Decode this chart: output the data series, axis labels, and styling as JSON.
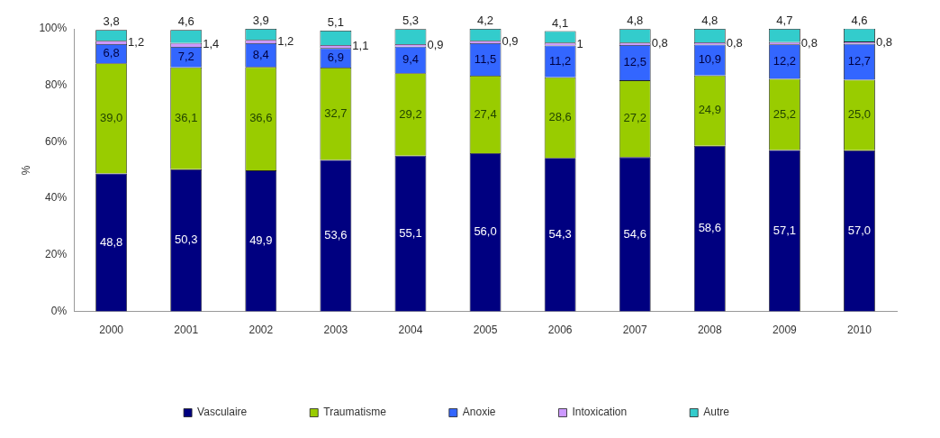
{
  "chart_data": {
    "type": "bar",
    "stacked": true,
    "ylabel": "%",
    "legend": "bottom",
    "grid": false,
    "categories": [
      "2000",
      "2001",
      "2002",
      "2003",
      "2004",
      "2005",
      "2006",
      "2007",
      "2008",
      "2009",
      "2010"
    ],
    "ylim": [
      0,
      100
    ],
    "yticks": [
      {
        "value": 0,
        "label": "0%"
      },
      {
        "value": 20,
        "label": "20%"
      },
      {
        "value": 40,
        "label": "40%"
      },
      {
        "value": 60,
        "label": "60%"
      },
      {
        "value": 80,
        "label": "80%"
      },
      {
        "value": 100,
        "label": "100%"
      }
    ],
    "series": [
      {
        "name": "Vasculaire",
        "color": "#000080",
        "values": [
          48.8,
          50.3,
          49.9,
          53.6,
          55.1,
          56.0,
          54.3,
          54.6,
          58.6,
          57.1,
          57.0
        ],
        "value_labels": [
          "48,8",
          "50,3",
          "49,9",
          "53,6",
          "55,1",
          "56,0",
          "54,3",
          "54,6",
          "58,6",
          "57,1",
          "57,0"
        ]
      },
      {
        "name": "Traumatisme",
        "color": "#99cc00",
        "values": [
          39.0,
          36.1,
          36.6,
          32.7,
          29.2,
          27.4,
          28.6,
          27.2,
          24.9,
          25.2,
          25.0
        ],
        "value_labels": [
          "39,0",
          "36,1",
          "36,6",
          "32,7",
          "29,2",
          "27,4",
          "28,6",
          "27,2",
          "24,9",
          "25,2",
          "25,0"
        ]
      },
      {
        "name": "Anoxie",
        "color": "#3366ff",
        "values": [
          6.8,
          7.2,
          8.4,
          6.9,
          9.4,
          11.5,
          11.2,
          12.5,
          10.9,
          12.2,
          12.7
        ],
        "value_labels": [
          "6,8",
          "7,2",
          "8,4",
          "6,9",
          "9,4",
          "11,5",
          "11,2",
          "12,5",
          "10,9",
          "12,2",
          "12,7"
        ]
      },
      {
        "name": "Intoxication",
        "color": "#cc99ff",
        "values": [
          1.2,
          1.4,
          1.2,
          1.1,
          0.9,
          0.9,
          1,
          0.8,
          0.8,
          0.8,
          0.8
        ],
        "value_labels": [
          "1,2",
          "1,4",
          "1,2",
          "1,1",
          "0,9",
          "0,9",
          "1",
          "0,8",
          "0,8",
          "0,8",
          "0,8"
        ]
      },
      {
        "name": "Autre",
        "color": "#33cccc",
        "values": [
          3.8,
          4.6,
          3.9,
          5.1,
          5.3,
          4.2,
          4.1,
          4.8,
          4.8,
          4.7,
          4.6
        ],
        "value_labels": [
          "3,8",
          "4,6",
          "3,9",
          "5,1",
          "5,3",
          "4,2",
          "4,1",
          "4,8",
          "4,8",
          "4,7",
          "4,6"
        ]
      }
    ]
  }
}
